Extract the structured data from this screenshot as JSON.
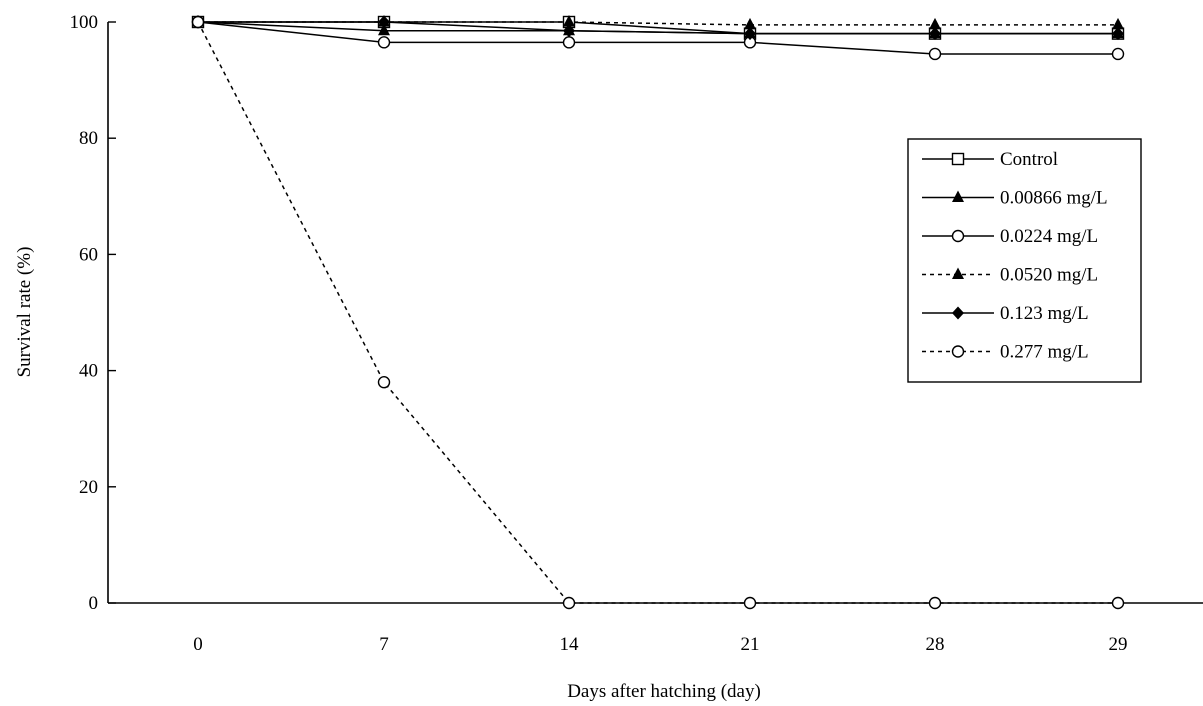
{
  "chart_data": {
    "type": "line",
    "x": [
      "0",
      "7",
      "14",
      "21",
      "28",
      "29"
    ],
    "xlabel": "Days after hatching (day)",
    "ylabel": "Survival rate (%)",
    "ylim": [
      0,
      100
    ],
    "yticks": [
      "0",
      "20",
      "40",
      "60",
      "80",
      "100"
    ],
    "grid": false,
    "legend_position": "right",
    "series": [
      {
        "name": "Control",
        "values": [
          100,
          100,
          100,
          98,
          98,
          98
        ],
        "marker": "open-square",
        "dash": "solid"
      },
      {
        "name": "0.00866 mg/L",
        "values": [
          100,
          98.5,
          98.5,
          98,
          98,
          98
        ],
        "marker": "filled-triangle",
        "dash": "solid"
      },
      {
        "name": "0.0224 mg/L",
        "values": [
          100,
          96.5,
          96.5,
          96.5,
          94.5,
          94.5
        ],
        "marker": "open-circle",
        "dash": "solid"
      },
      {
        "name": "0.0520 mg/L",
        "values": [
          100,
          100,
          100,
          99.5,
          99.5,
          99.5
        ],
        "marker": "filled-triangle",
        "dash": "dotted"
      },
      {
        "name": "0.123 mg/L",
        "values": [
          100,
          100,
          98.5,
          98,
          98,
          98
        ],
        "marker": "filled-diamond",
        "dash": "solid"
      },
      {
        "name": "0.277 mg/L",
        "values": [
          100,
          38,
          0,
          0,
          0,
          0
        ],
        "marker": "open-circle",
        "dash": "dotted"
      }
    ]
  }
}
